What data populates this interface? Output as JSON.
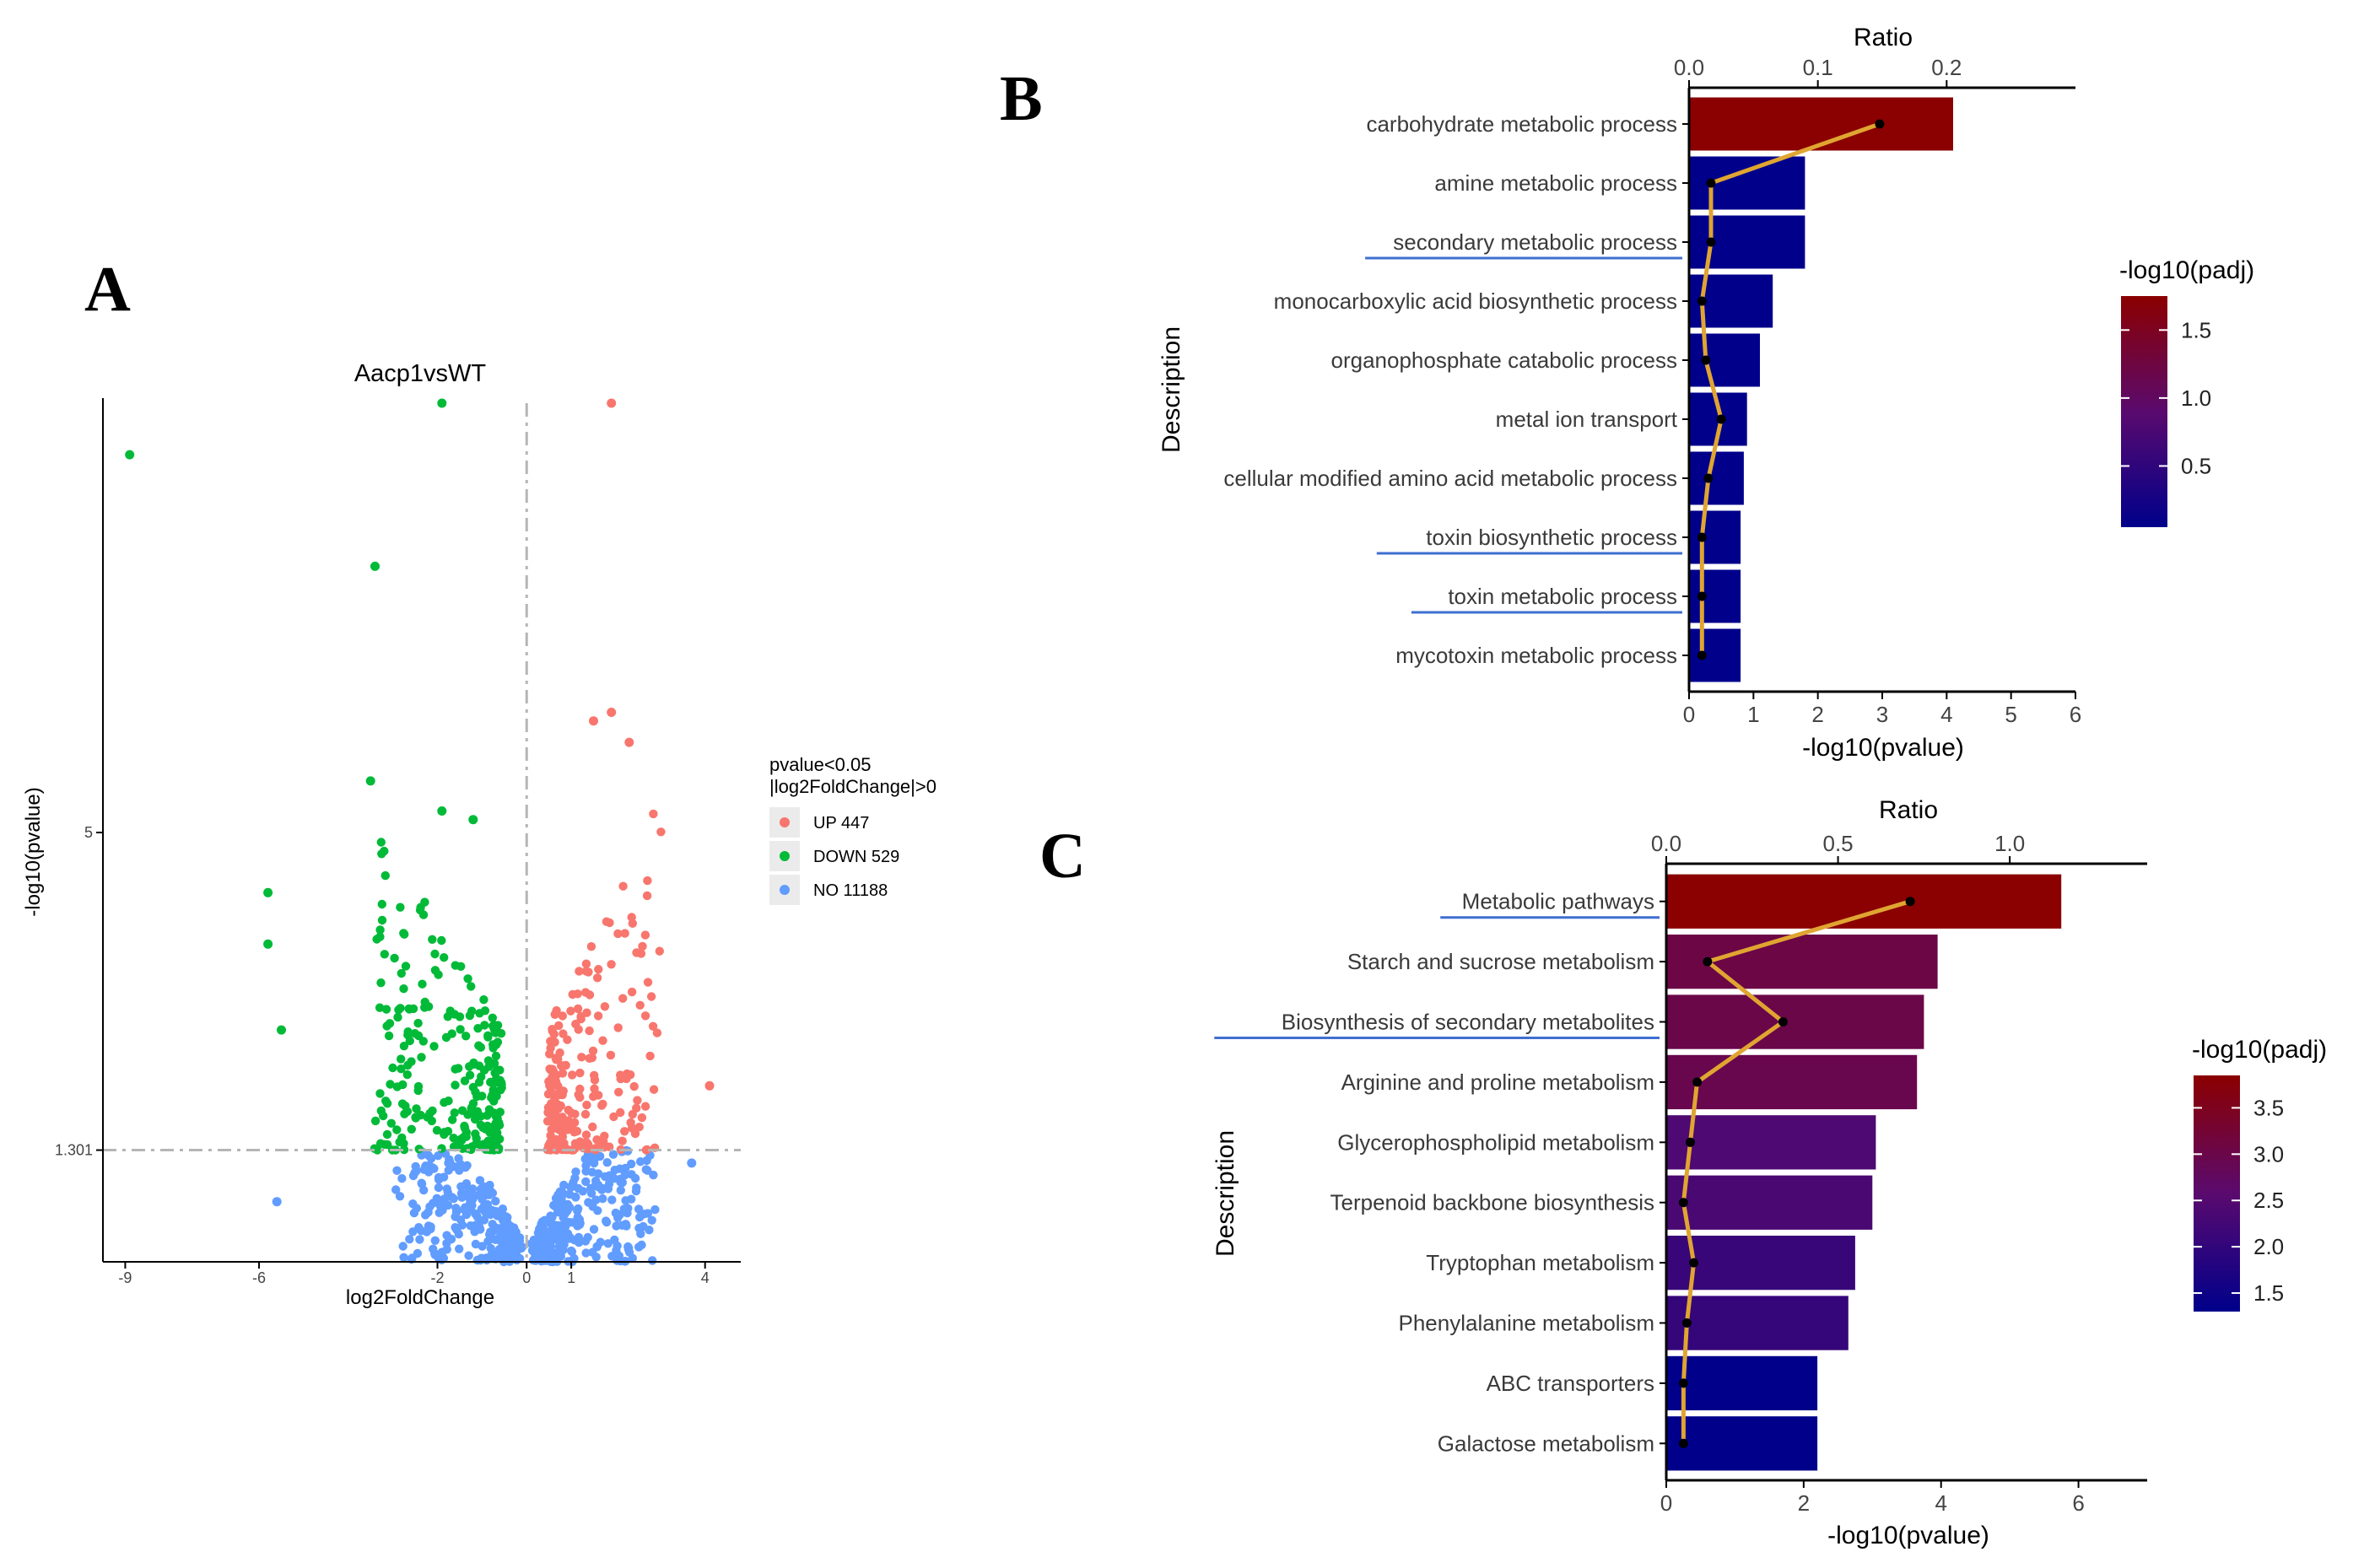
{
  "panel_labels": {
    "a": "A",
    "b": "B",
    "c": "C"
  },
  "colors": {
    "up": "#f8766d",
    "down": "#00ba38",
    "no": "#619cff",
    "ratio_line": "#e0a531",
    "ratio_point": "#000000",
    "padj_high": "#8b0000",
    "padj_mid": "#5a0a6e",
    "padj_low": "#00008b",
    "underline": "#3f6fd0"
  },
  "chart_data": [
    {
      "id": "A",
      "type": "scatter",
      "title": "Aacp1vsWT",
      "xlabel": "log2FoldChange",
      "ylabel": "-log10(pvalue)",
      "xlim": [
        -9.5,
        4.8
      ],
      "ylim": [
        0,
        10
      ],
      "x_ticks": [
        -9,
        -6,
        -2,
        0,
        1,
        4
      ],
      "y_ticks": [
        1.301,
        5
      ],
      "y_tick_labels": [
        "1.301",
        "5"
      ],
      "threshold_y": 1.301,
      "threshold_x": 0,
      "legend_title": [
        "pvalue<0.05",
        "|log2FoldChange|>0"
      ],
      "legend": [
        {
          "key": "up",
          "label": "UP 447"
        },
        {
          "key": "down",
          "label": "DOWN 529"
        },
        {
          "key": "no",
          "label": "NO 11188"
        }
      ],
      "counts": {
        "up": 447,
        "down": 529,
        "no": 11188
      },
      "notable_points": [
        {
          "x": -8.9,
          "y": 9.4,
          "group": "down"
        },
        {
          "x": -1.9,
          "y": 10.0,
          "group": "down"
        },
        {
          "x": -3.4,
          "y": 8.1,
          "group": "down"
        },
        {
          "x": -3.5,
          "y": 5.6,
          "group": "down"
        },
        {
          "x": -1.9,
          "y": 5.25,
          "group": "down"
        },
        {
          "x": -1.2,
          "y": 5.15,
          "group": "down"
        },
        {
          "x": -5.8,
          "y": 4.3,
          "group": "down"
        },
        {
          "x": -5.8,
          "y": 3.7,
          "group": "down"
        },
        {
          "x": -5.5,
          "y": 2.7,
          "group": "down"
        },
        {
          "x": -5.6,
          "y": 0.7,
          "group": "no"
        },
        {
          "x": 1.9,
          "y": 10.0,
          "group": "up"
        },
        {
          "x": 1.9,
          "y": 6.4,
          "group": "up"
        },
        {
          "x": 1.5,
          "y": 6.3,
          "group": "up"
        },
        {
          "x": 2.3,
          "y": 6.05,
          "group": "up"
        },
        {
          "x": 4.1,
          "y": 2.05,
          "group": "up"
        },
        {
          "x": 3.7,
          "y": 1.15,
          "group": "no"
        }
      ]
    },
    {
      "id": "B",
      "type": "bar",
      "orientation": "horizontal",
      "xlabel": "-log10(pvalue)",
      "ylabel": "Description",
      "x2label": "Ratio",
      "xlim": [
        0,
        6
      ],
      "x_ticks": [
        0,
        1,
        2,
        3,
        4,
        5,
        6
      ],
      "x2lim": [
        0,
        0.3
      ],
      "x2_ticks": [
        "0.0",
        "0.1",
        "0.2"
      ],
      "x2_tick_values": [
        0,
        0.1,
        0.2
      ],
      "colorbar_title": "-log10(padj)",
      "colorbar_range": [
        0.05,
        1.75
      ],
      "colorbar_ticks": [
        "1.5",
        "1.0",
        "0.5"
      ],
      "colorbar_tick_values": [
        1.5,
        1.0,
        0.5
      ],
      "colorbar_colors": [
        "#8b0000",
        "#00008b"
      ],
      "categories": [
        "carbohydrate metabolic process",
        "amine metabolic process",
        "secondary metabolic process",
        "monocarboxylic acid biosynthetic process",
        "organophosphate catabolic process",
        "metal ion transport",
        "cellular modified amino acid metabolic process",
        "toxin biosynthetic process",
        "toxin metabolic process",
        "mycotoxin metabolic process"
      ],
      "underlined": [
        false,
        false,
        true,
        false,
        false,
        false,
        false,
        true,
        true,
        false
      ],
      "values": [
        4.1,
        1.8,
        1.8,
        1.3,
        1.1,
        0.9,
        0.85,
        0.8,
        0.8,
        0.8
      ],
      "padj": [
        1.75,
        0.05,
        0.05,
        0.05,
        0.05,
        0.05,
        0.05,
        0.05,
        0.05,
        0.05
      ],
      "ratio": [
        0.148,
        0.017,
        0.017,
        0.01,
        0.013,
        0.025,
        0.015,
        0.01,
        0.01,
        0.01
      ]
    },
    {
      "id": "C",
      "type": "bar",
      "orientation": "horizontal",
      "xlabel": "-log10(pvalue)",
      "ylabel": "Description",
      "x2label": "Ratio",
      "xlim": [
        0,
        7
      ],
      "x_ticks": [
        0,
        2,
        4,
        6
      ],
      "x2lim": [
        0,
        1.4
      ],
      "x2_ticks": [
        "0.0",
        "0.5",
        "1.0"
      ],
      "x2_tick_values": [
        0,
        0.5,
        1.0
      ],
      "colorbar_title": "-log10(padj)",
      "colorbar_range": [
        1.3,
        3.85
      ],
      "colorbar_ticks": [
        "3.5",
        "3.0",
        "2.5",
        "2.0",
        "1.5"
      ],
      "colorbar_tick_values": [
        3.5,
        3.0,
        2.5,
        2.0,
        1.5
      ],
      "colorbar_colors": [
        "#8b0000",
        "#00008b"
      ],
      "categories": [
        "Metabolic pathways",
        "Starch and sucrose metabolism",
        "Biosynthesis of secondary metabolites",
        "Arginine and proline metabolism",
        "Glycerophospholipid metabolism",
        "Terpenoid backbone biosynthesis",
        "Tryptophan metabolism",
        "Phenylalanine metabolism",
        "ABC transporters",
        "Galactose metabolism"
      ],
      "underlined": [
        true,
        false,
        true,
        false,
        false,
        false,
        false,
        false,
        false,
        false
      ],
      "values": [
        5.75,
        3.95,
        3.75,
        3.65,
        3.05,
        3.0,
        2.75,
        2.65,
        2.2,
        2.2
      ],
      "padj": [
        3.85,
        3.05,
        3.0,
        2.95,
        2.4,
        2.35,
        2.1,
        2.05,
        1.3,
        1.3
      ],
      "ratio": [
        0.71,
        0.12,
        0.34,
        0.09,
        0.07,
        0.05,
        0.08,
        0.06,
        0.05,
        0.05
      ]
    }
  ]
}
